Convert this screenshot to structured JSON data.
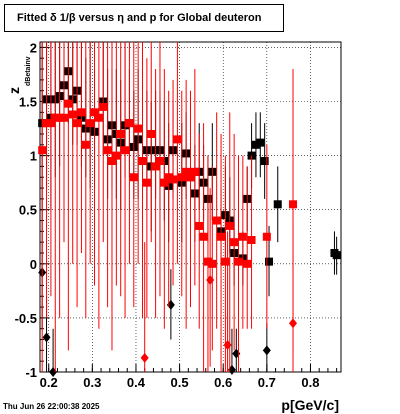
{
  "title": "Fitted δ 1/β versus η and p for Global deuteron",
  "timestamp": "Thu Jun 26 22:00:38 2025",
  "chart_data": {
    "type": "scatter",
    "title": "Fitted δ 1/β versus η and p for Global deuteron",
    "xlabel": "p[GeV/c]",
    "ylabel": "z",
    "ylabel_subscript": "dBetainv",
    "xlim": [
      0.18,
      0.87
    ],
    "ylim": [
      -1,
      2.05
    ],
    "x_ticks": [
      0.2,
      0.3,
      0.4,
      0.5,
      0.6,
      0.7,
      0.8
    ],
    "y_ticks": [
      -1,
      -0.5,
      0,
      0.5,
      1,
      1.5,
      2
    ],
    "grid": true,
    "legend": "none",
    "colors": {
      "black_series": "#000000",
      "red_series": "#ff0000"
    },
    "series": [
      {
        "color": "#000000",
        "marker": "square",
        "points": [
          {
            "x": 0.185,
            "y": 1.3,
            "lo": 0.4,
            "hi": 2.05
          },
          {
            "x": 0.195,
            "y": 1.52,
            "lo": 0.7,
            "hi": 2.05
          },
          {
            "x": 0.205,
            "y": 1.35,
            "lo": 0.5,
            "hi": 2.05
          },
          {
            "x": 0.215,
            "y": 1.52,
            "lo": 0.8,
            "hi": 2.05
          },
          {
            "x": 0.225,
            "y": 1.55,
            "lo": 0.9,
            "hi": 2.05
          },
          {
            "x": 0.235,
            "y": 1.65,
            "lo": 1.2,
            "hi": 2.05
          },
          {
            "x": 0.245,
            "y": 1.78,
            "lo": 1.3,
            "hi": 2.05
          },
          {
            "x": 0.255,
            "y": 1.52,
            "lo": 1.1,
            "hi": 2.05
          },
          {
            "x": 0.265,
            "y": 1.6,
            "lo": 1.1,
            "hi": 2.05
          },
          {
            "x": 0.275,
            "y": 1.35,
            "lo": 0.9,
            "hi": 2.05
          },
          {
            "x": 0.285,
            "y": 1.25,
            "lo": 0.8,
            "hi": 1.9
          },
          {
            "x": 0.295,
            "y": 1.28,
            "lo": 0.7,
            "hi": 2.05
          },
          {
            "x": 0.305,
            "y": 1.22,
            "lo": 0.7,
            "hi": 1.8
          },
          {
            "x": 0.325,
            "y": 1.5,
            "lo": 1.0,
            "hi": 2.05
          },
          {
            "x": 0.335,
            "y": 1.15,
            "lo": 0.6,
            "hi": 1.8
          },
          {
            "x": 0.345,
            "y": 1.28,
            "lo": 0.7,
            "hi": 1.8
          },
          {
            "x": 0.355,
            "y": 1.2,
            "lo": 0.6,
            "hi": 1.8
          },
          {
            "x": 0.365,
            "y": 1.12,
            "lo": 0.5,
            "hi": 1.7
          },
          {
            "x": 0.375,
            "y": 1.28,
            "lo": 0.8,
            "hi": 2.05
          },
          {
            "x": 0.385,
            "y": 1.3,
            "lo": 0.8,
            "hi": 1.8
          },
          {
            "x": 0.395,
            "y": 1.08,
            "lo": 0.6,
            "hi": 1.6
          },
          {
            "x": 0.405,
            "y": 1.15,
            "lo": 0.6,
            "hi": 1.8
          },
          {
            "x": 0.425,
            "y": 1.05,
            "lo": 0.5,
            "hi": 1.6
          },
          {
            "x": 0.435,
            "y": 0.9,
            "lo": 0.3,
            "hi": 1.5
          },
          {
            "x": 0.445,
            "y": 1.05,
            "lo": 0.6,
            "hi": 1.6
          },
          {
            "x": 0.455,
            "y": 1.05,
            "lo": 0.5,
            "hi": 1.6
          },
          {
            "x": 0.465,
            "y": 0.95,
            "lo": 0.4,
            "hi": 1.5
          },
          {
            "x": 0.475,
            "y": 0.72,
            "lo": 0.2,
            "hi": 1.3
          },
          {
            "x": 0.485,
            "y": 1.05,
            "lo": 0.6,
            "hi": 1.5
          },
          {
            "x": 0.505,
            "y": 0.75,
            "lo": 0.2,
            "hi": 1.3
          },
          {
            "x": 0.515,
            "y": 1.02,
            "lo": 0.6,
            "hi": 1.4
          },
          {
            "x": 0.525,
            "y": 0.8,
            "lo": 0.4,
            "hi": 1.2
          },
          {
            "x": 0.535,
            "y": 0.65,
            "lo": 0.2,
            "hi": 1.1
          },
          {
            "x": 0.545,
            "y": 0.85,
            "lo": 0.5,
            "hi": 1.3
          },
          {
            "x": 0.555,
            "y": 0.75,
            "lo": 0.4,
            "hi": 1.1
          },
          {
            "x": 0.565,
            "y": 0.6,
            "lo": 0.2,
            "hi": 1.0
          },
          {
            "x": 0.575,
            "y": 0.85,
            "lo": 0.4,
            "hi": 1.3
          },
          {
            "x": 0.595,
            "y": 0.3,
            "lo": 0.0,
            "hi": 0.7
          },
          {
            "x": 0.605,
            "y": 0.45,
            "lo": 0.0,
            "hi": 0.9
          },
          {
            "x": 0.615,
            "y": 0.4,
            "lo": 0.1,
            "hi": 0.8
          },
          {
            "x": 0.625,
            "y": 0.1,
            "lo": -0.2,
            "hi": 0.4
          },
          {
            "x": 0.645,
            "y": 0.05,
            "lo": -0.2,
            "hi": 0.3
          },
          {
            "x": 0.655,
            "y": 0.6,
            "lo": 0.3,
            "hi": 0.9
          },
          {
            "x": 0.665,
            "y": 1.0,
            "lo": 0.7,
            "hi": 1.3
          },
          {
            "x": 0.675,
            "y": 1.1,
            "lo": 0.8,
            "hi": 1.4
          },
          {
            "x": 0.685,
            "y": 1.12,
            "lo": 0.8,
            "hi": 1.4
          },
          {
            "x": 0.695,
            "y": 0.95,
            "lo": 0.6,
            "hi": 1.3
          },
          {
            "x": 0.705,
            "y": 0.02,
            "lo": -0.3,
            "hi": 0.35
          },
          {
            "x": 0.725,
            "y": 0.55,
            "lo": 0.2,
            "hi": 0.9
          },
          {
            "x": 0.855,
            "y": 0.1,
            "lo": -0.1,
            "hi": 0.3
          },
          {
            "x": 0.86,
            "y": 0.08,
            "lo": -0.1,
            "hi": 0.25
          }
        ]
      },
      {
        "color": "#000000",
        "marker": "diamond",
        "points": [
          {
            "x": 0.185,
            "y": -0.08,
            "lo": -0.6,
            "hi": 0.4
          },
          {
            "x": 0.195,
            "y": -0.68,
            "lo": -1.0,
            "hi": -0.3
          },
          {
            "x": 0.21,
            "y": -1.0,
            "lo": -1.0,
            "hi": -0.6
          },
          {
            "x": 0.48,
            "y": -0.38,
            "lo": -0.7,
            "hi": -0.05
          },
          {
            "x": 0.62,
            "y": -0.98,
            "lo": -1.0,
            "hi": -0.6
          },
          {
            "x": 0.63,
            "y": -0.83,
            "lo": -1.0,
            "hi": -0.6
          },
          {
            "x": 0.7,
            "y": -0.8,
            "lo": -1.0,
            "hi": -0.55
          }
        ]
      },
      {
        "color": "#ff0000",
        "marker": "square",
        "points": [
          {
            "x": 0.185,
            "y": 1.05,
            "lo": -1.0,
            "hi": 2.05
          },
          {
            "x": 0.195,
            "y": 1.3,
            "lo": -0.5,
            "hi": 2.05
          },
          {
            "x": 0.205,
            "y": 1.3,
            "lo": -0.3,
            "hi": 2.05
          },
          {
            "x": 0.215,
            "y": 1.35,
            "lo": -1.0,
            "hi": 2.05
          },
          {
            "x": 0.225,
            "y": 1.35,
            "lo": -0.5,
            "hi": 2.05
          },
          {
            "x": 0.235,
            "y": 1.35,
            "lo": 0.2,
            "hi": 2.05
          },
          {
            "x": 0.245,
            "y": 1.48,
            "lo": -0.8,
            "hi": 2.05
          },
          {
            "x": 0.255,
            "y": 1.38,
            "lo": 0.0,
            "hi": 2.05
          },
          {
            "x": 0.265,
            "y": 1.3,
            "lo": -0.4,
            "hi": 2.05
          },
          {
            "x": 0.275,
            "y": 1.4,
            "lo": 0.1,
            "hi": 2.05
          },
          {
            "x": 0.285,
            "y": 1.1,
            "lo": -0.5,
            "hi": 2.05
          },
          {
            "x": 0.295,
            "y": 1.3,
            "lo": 0.0,
            "hi": 2.05
          },
          {
            "x": 0.305,
            "y": 1.4,
            "lo": -0.2,
            "hi": 2.05
          },
          {
            "x": 0.315,
            "y": 1.35,
            "lo": -0.6,
            "hi": 2.05
          },
          {
            "x": 0.325,
            "y": 1.45,
            "lo": 0.2,
            "hi": 2.05
          },
          {
            "x": 0.335,
            "y": 1.05,
            "lo": -0.4,
            "hi": 2.05
          },
          {
            "x": 0.345,
            "y": 0.95,
            "lo": -0.8,
            "hi": 2.05
          },
          {
            "x": 0.355,
            "y": 1.0,
            "lo": -0.2,
            "hi": 2.05
          },
          {
            "x": 0.365,
            "y": 1.2,
            "lo": -0.3,
            "hi": 2.05
          },
          {
            "x": 0.375,
            "y": 1.05,
            "lo": -0.5,
            "hi": 2.05
          },
          {
            "x": 0.385,
            "y": 1.3,
            "lo": 0.0,
            "hi": 2.05
          },
          {
            "x": 0.395,
            "y": 0.8,
            "lo": -0.4,
            "hi": 2.05
          },
          {
            "x": 0.405,
            "y": 1.25,
            "lo": 0.0,
            "hi": 2.05
          },
          {
            "x": 0.415,
            "y": 0.95,
            "lo": -0.5,
            "hi": 2.05
          },
          {
            "x": 0.425,
            "y": 0.75,
            "lo": -0.5,
            "hi": 1.9
          },
          {
            "x": 0.435,
            "y": 1.2,
            "lo": 0.2,
            "hi": 2.05
          },
          {
            "x": 0.445,
            "y": 0.9,
            "lo": -0.5,
            "hi": 1.8
          },
          {
            "x": 0.455,
            "y": 0.95,
            "lo": -0.3,
            "hi": 2.05
          },
          {
            "x": 0.465,
            "y": 0.75,
            "lo": -0.6,
            "hi": 1.8
          },
          {
            "x": 0.475,
            "y": 0.8,
            "lo": -0.4,
            "hi": 1.6
          },
          {
            "x": 0.485,
            "y": 0.78,
            "lo": -0.2,
            "hi": 1.7
          },
          {
            "x": 0.495,
            "y": 1.15,
            "lo": 0.0,
            "hi": 2.05
          },
          {
            "x": 0.505,
            "y": 0.8,
            "lo": -0.3,
            "hi": 1.6
          },
          {
            "x": 0.515,
            "y": 0.85,
            "lo": -0.6,
            "hi": 1.7
          },
          {
            "x": 0.525,
            "y": 0.8,
            "lo": -0.4,
            "hi": 1.6
          },
          {
            "x": 0.535,
            "y": 0.85,
            "lo": -0.2,
            "hi": 1.8
          },
          {
            "x": 0.545,
            "y": 0.35,
            "lo": -0.6,
            "hi": 1.2
          },
          {
            "x": 0.555,
            "y": 0.25,
            "lo": -1.0,
            "hi": 1.3
          },
          {
            "x": 0.565,
            "y": 0.02,
            "lo": -1.0,
            "hi": 1.0
          },
          {
            "x": 0.575,
            "y": 0.0,
            "lo": -0.8,
            "hi": 0.9
          },
          {
            "x": 0.585,
            "y": 0.4,
            "lo": -0.6,
            "hi": 1.4
          },
          {
            "x": 0.595,
            "y": 0.25,
            "lo": -1.0,
            "hi": 1.2
          },
          {
            "x": 0.605,
            "y": 0.02,
            "lo": -1.0,
            "hi": 1.0
          },
          {
            "x": 0.615,
            "y": 0.35,
            "lo": -1.0,
            "hi": 1.4
          },
          {
            "x": 0.625,
            "y": 0.2,
            "lo": -0.8,
            "hi": 1.2
          },
          {
            "x": 0.635,
            "y": 0.02,
            "lo": -1.0,
            "hi": 1.0
          },
          {
            "x": 0.645,
            "y": 0.25,
            "lo": -0.6,
            "hi": 1.0
          },
          {
            "x": 0.655,
            "y": 0.0,
            "lo": -0.6,
            "hi": 0.9
          },
          {
            "x": 0.665,
            "y": 0.22,
            "lo": -0.6,
            "hi": 1.0
          },
          {
            "x": 0.7,
            "y": 0.25,
            "lo": -0.6,
            "hi": 1.1
          },
          {
            "x": 0.76,
            "y": 0.55,
            "lo": -0.8,
            "hi": 1.8
          }
        ]
      },
      {
        "color": "#ff0000",
        "marker": "diamond",
        "points": [
          {
            "x": 0.42,
            "y": -0.87,
            "lo": -1.0,
            "hi": 0.2
          },
          {
            "x": 0.57,
            "y": -0.15,
            "lo": -0.95,
            "hi": 0.7
          },
          {
            "x": 0.61,
            "y": -0.75,
            "lo": -1.0,
            "hi": 0.3
          },
          {
            "x": 0.76,
            "y": -0.55,
            "lo": -1.0,
            "hi": 0.4
          }
        ]
      }
    ]
  }
}
